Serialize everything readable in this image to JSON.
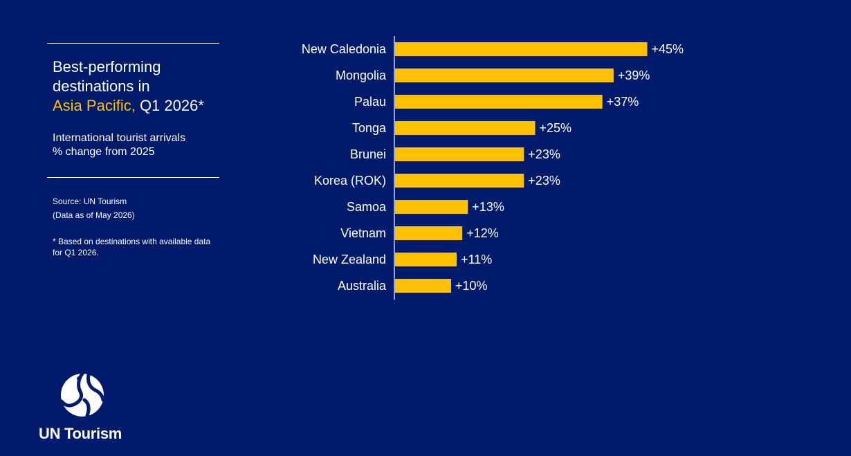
{
  "title": {
    "line1": "Best-performing",
    "line2": "destinations in",
    "highlight": "Asia Pacific,",
    "rest": " Q1 2026*"
  },
  "subtitle": {
    "line1": "International tourist arrivals",
    "line2": "% change from 2025"
  },
  "source": {
    "line1": "Source: UN Tourism",
    "line2": "(Data as of May 2026)"
  },
  "footnote": {
    "line1": "* Based on destinations with available data",
    "line2": "for Q1 2026."
  },
  "logo": {
    "text": "UN Tourism",
    "icon": "un-tourism-globe-icon"
  },
  "colors": {
    "background": "#001a6c",
    "bar": "#ffc000",
    "highlight": "#ffc000",
    "text": "#ffffff"
  },
  "chart_data": {
    "type": "bar",
    "orientation": "horizontal",
    "categories": [
      "New Caledonia",
      "Mongolia",
      "Palau",
      "Tonga",
      "Brunei",
      "Korea (ROK)",
      "Samoa",
      "Vietnam",
      "New Zealand",
      "Australia"
    ],
    "values": [
      45,
      39,
      37,
      25,
      23,
      23,
      13,
      12,
      11,
      10
    ],
    "data_labels": [
      "+45%",
      "+39%",
      "+37%",
      "+25%",
      "+23%",
      "+23%",
      "+13%",
      "+12%",
      "+11%",
      "+10%"
    ],
    "grid": false,
    "legend": "none"
  }
}
